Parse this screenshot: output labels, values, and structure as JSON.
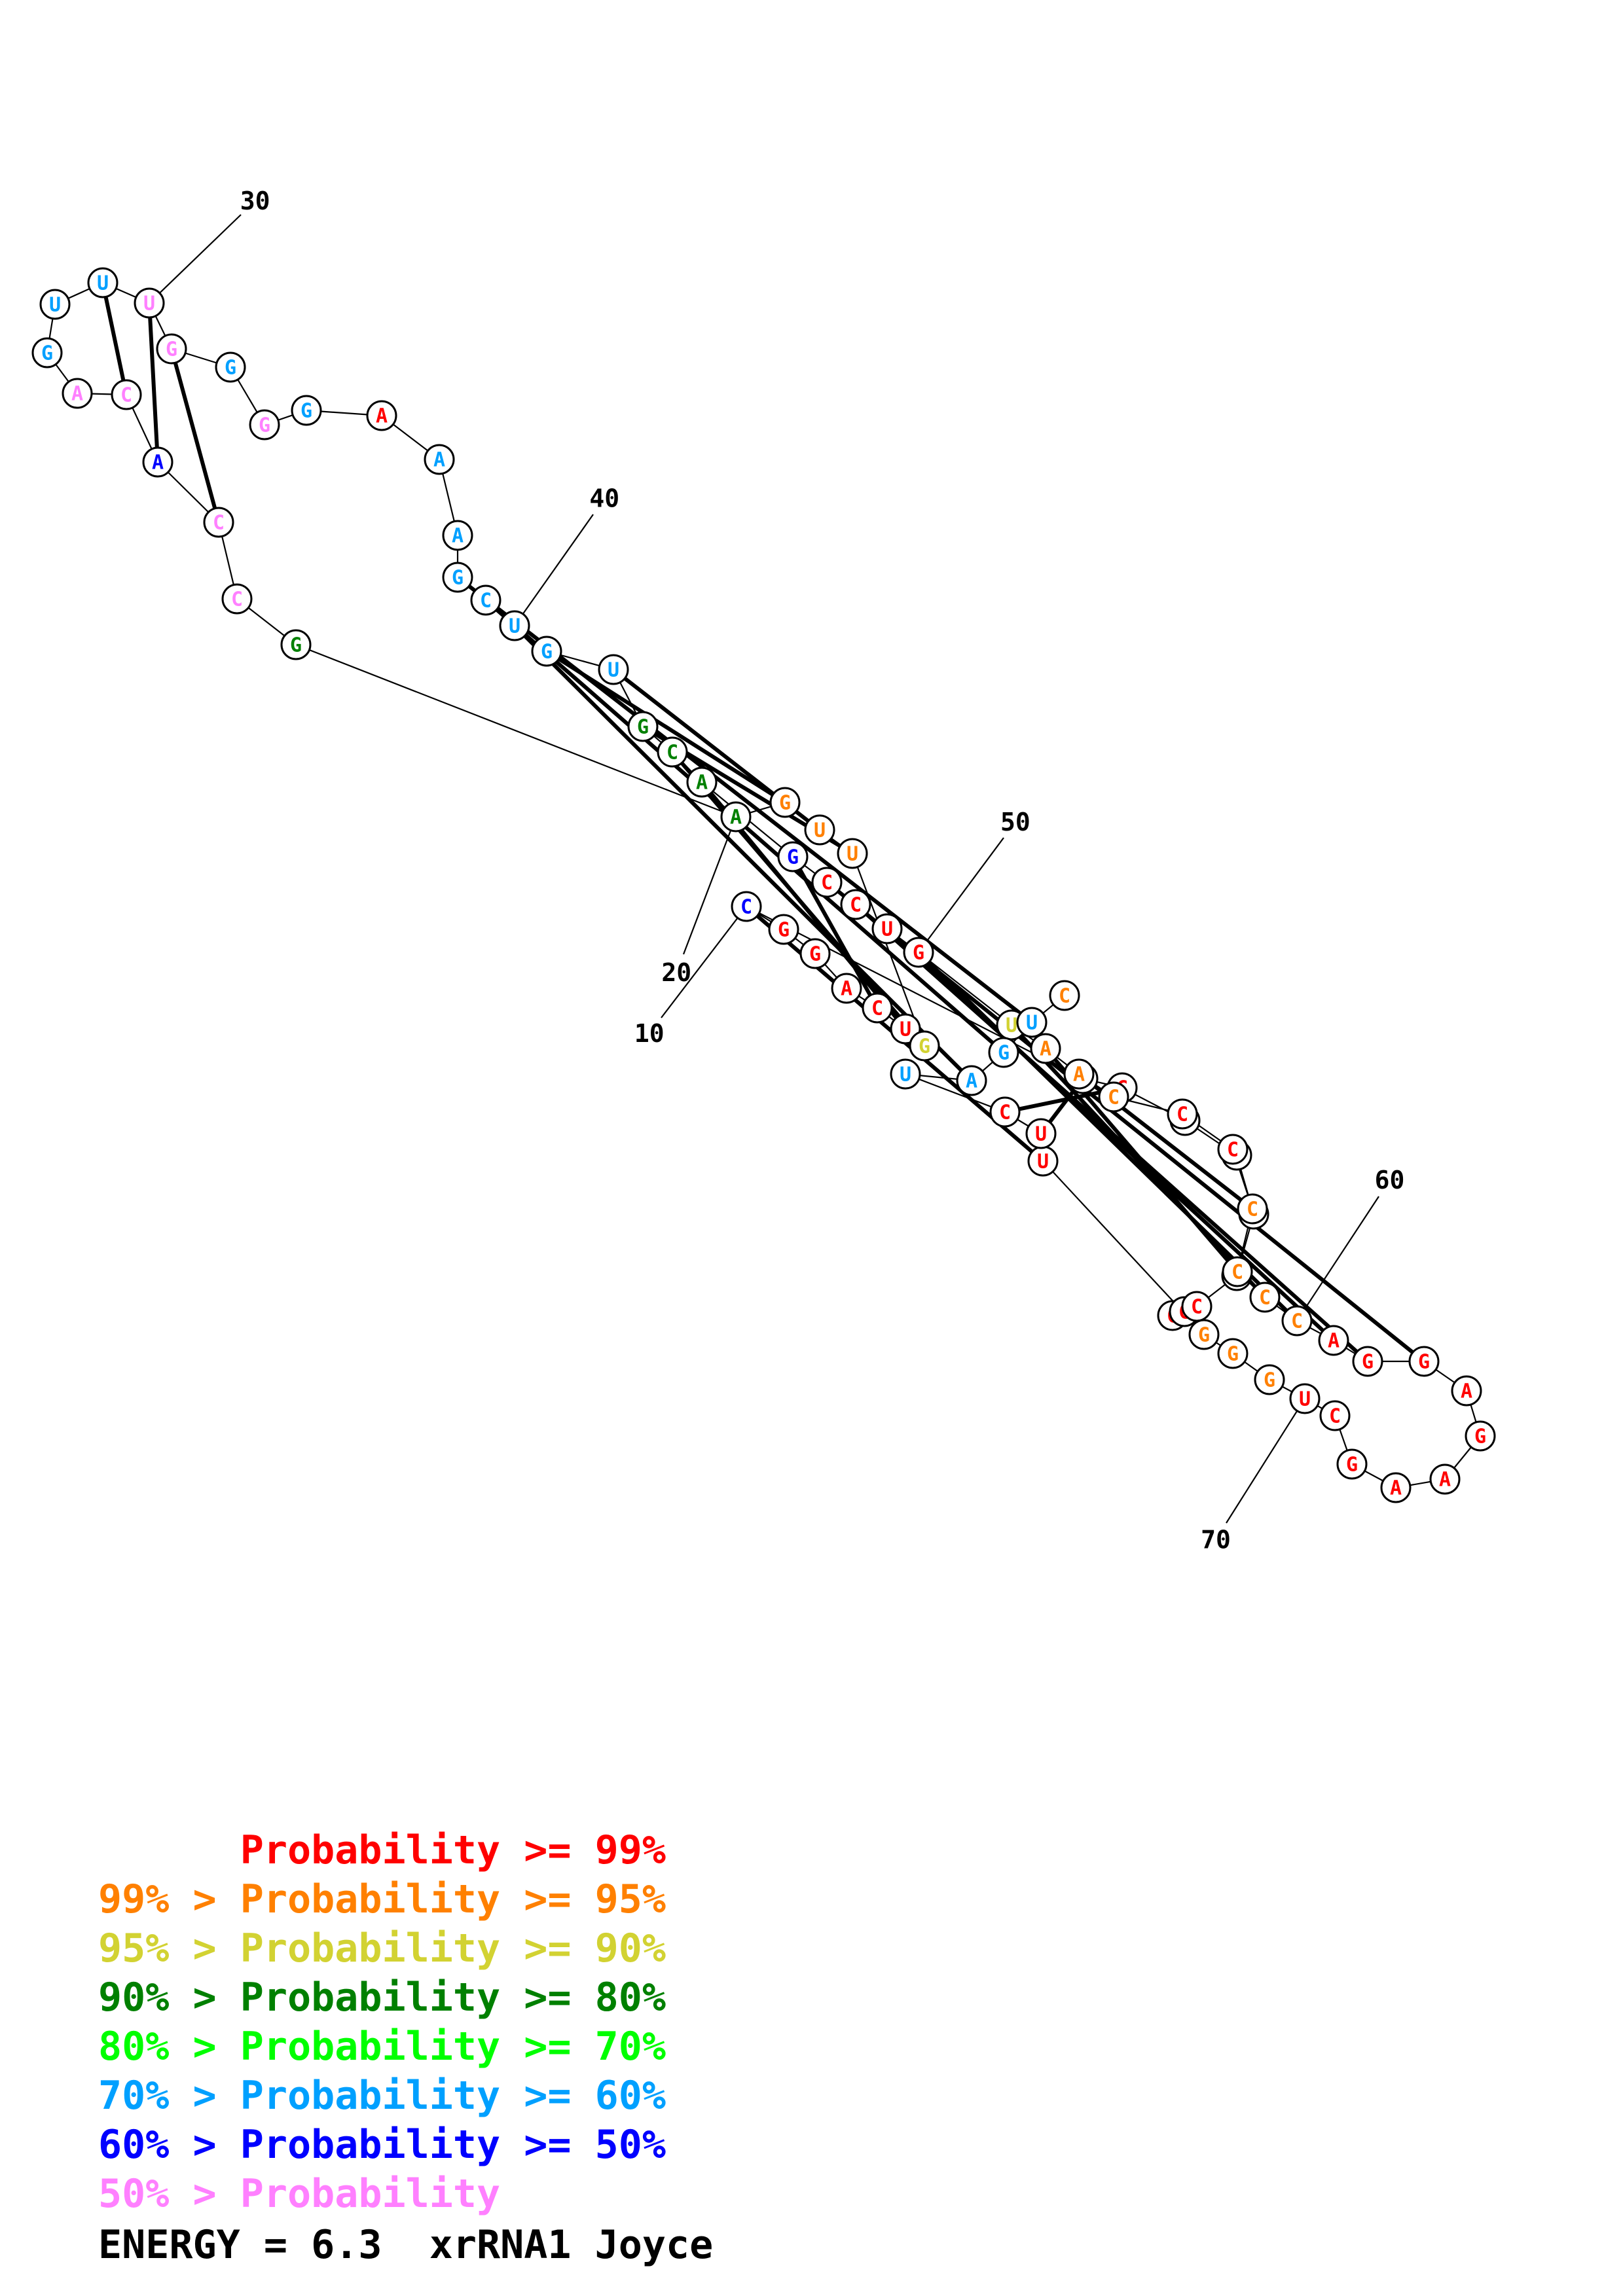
{
  "colors": {
    "p99": "#ff0000",
    "p95": "#ff8000",
    "p90": "#d2d232",
    "p80": "#008000",
    "p70": "#00ff00",
    "p60": "#00a0ff",
    "p50": "#0000ff",
    "p00": "#ff80ff"
  },
  "nucleotides": [
    {
      "n": 1,
      "base": "C",
      "prob": "p99"
    },
    {
      "n": 2,
      "base": "C",
      "prob": "p99"
    },
    {
      "n": 3,
      "base": "C",
      "prob": "p99"
    },
    {
      "n": 4,
      "base": "C",
      "prob": "p95"
    },
    {
      "n": 5,
      "base": "C",
      "prob": "p95"
    },
    {
      "n": 6,
      "base": "C",
      "prob": "p95"
    },
    {
      "n": 7,
      "base": "U",
      "prob": "p99"
    },
    {
      "n": 8,
      "base": "C",
      "prob": "p99"
    },
    {
      "n": 9,
      "base": "C",
      "prob": "p60"
    },
    {
      "n": 10,
      "base": "C",
      "prob": "p50"
    },
    {
      "n": 11,
      "base": "G",
      "prob": "p99"
    },
    {
      "n": 12,
      "base": "G",
      "prob": "p99"
    },
    {
      "n": 13,
      "base": "A",
      "prob": "p99"
    },
    {
      "n": 14,
      "base": "C",
      "prob": "p99"
    },
    {
      "n": 15,
      "base": "U",
      "prob": "p99"
    },
    {
      "n": 16,
      "base": "G",
      "prob": "p90"
    },
    {
      "n": 17,
      "base": "U",
      "prob": "p95"
    },
    {
      "n": 18,
      "base": "U",
      "prob": "p95"
    },
    {
      "n": 19,
      "base": "G",
      "prob": "p95"
    },
    {
      "n": 20,
      "base": "A",
      "prob": "p80"
    },
    {
      "n": 21,
      "base": "G",
      "prob": "p80"
    },
    {
      "n": 22,
      "base": "C",
      "prob": "p00"
    },
    {
      "n": 23,
      "base": "C",
      "prob": "p00"
    },
    {
      "n": 24,
      "base": "A",
      "prob": "p50"
    },
    {
      "n": 25,
      "base": "C",
      "prob": "p00"
    },
    {
      "n": 26,
      "base": "A",
      "prob": "p00"
    },
    {
      "n": 27,
      "base": "G",
      "prob": "p60"
    },
    {
      "n": 28,
      "base": "U",
      "prob": "p60"
    },
    {
      "n": 29,
      "base": "U",
      "prob": "p60"
    },
    {
      "n": 30,
      "base": "U",
      "prob": "p00"
    },
    {
      "n": 31,
      "base": "G",
      "prob": "p00"
    },
    {
      "n": 32,
      "base": "G",
      "prob": "p60"
    },
    {
      "n": 33,
      "base": "G",
      "prob": "p00"
    },
    {
      "n": 34,
      "base": "G",
      "prob": "p60"
    },
    {
      "n": 35,
      "base": "A",
      "prob": "p99"
    },
    {
      "n": 36,
      "base": "A",
      "prob": "p60"
    },
    {
      "n": 37,
      "base": "A",
      "prob": "p60"
    },
    {
      "n": 38,
      "base": "G",
      "prob": "p60"
    },
    {
      "n": 39,
      "base": "C",
      "prob": "p60"
    },
    {
      "n": 40,
      "base": "U",
      "prob": "p60"
    },
    {
      "n": 41,
      "base": "G",
      "prob": "p60"
    },
    {
      "n": 42,
      "base": "U",
      "prob": "p60"
    },
    {
      "n": 43,
      "base": "G",
      "prob": "p80"
    },
    {
      "n": 44,
      "base": "C",
      "prob": "p80"
    },
    {
      "n": 45,
      "base": "A",
      "prob": "p80"
    },
    {
      "n": 46,
      "base": "G",
      "prob": "p50"
    },
    {
      "n": 47,
      "base": "C",
      "prob": "p99"
    },
    {
      "n": 48,
      "base": "C",
      "prob": "p99"
    },
    {
      "n": 49,
      "base": "U",
      "prob": "p99"
    },
    {
      "n": 50,
      "base": "G",
      "prob": "p99"
    },
    {
      "n": 51,
      "base": "U",
      "prob": "p90"
    },
    {
      "n": 52,
      "base": "A",
      "prob": "p95"
    },
    {
      "n": 53,
      "base": "A",
      "prob": "p95"
    },
    {
      "n": 54,
      "base": "C",
      "prob": "p95"
    },
    {
      "n": 55,
      "base": "C",
      "prob": "p99"
    },
    {
      "n": 56,
      "base": "C",
      "prob": "p99"
    },
    {
      "n": 57,
      "base": "C",
      "prob": "p95"
    },
    {
      "n": 58,
      "base": "C",
      "prob": "p95"
    },
    {
      "n": 59,
      "base": "C",
      "prob": "p95"
    },
    {
      "n": 60,
      "base": "C",
      "prob": "p95"
    },
    {
      "n": 61,
      "base": "A",
      "prob": "p99"
    },
    {
      "n": 62,
      "base": "G",
      "prob": "p99"
    },
    {
      "n": 63,
      "base": "G",
      "prob": "p99"
    },
    {
      "n": 64,
      "base": "A",
      "prob": "p99"
    },
    {
      "n": 65,
      "base": "G",
      "prob": "p99"
    },
    {
      "n": 66,
      "base": "A",
      "prob": "p99"
    },
    {
      "n": 67,
      "base": "A",
      "prob": "p99"
    },
    {
      "n": 68,
      "base": "G",
      "prob": "p99"
    },
    {
      "n": 69,
      "base": "C",
      "prob": "p99"
    },
    {
      "n": 70,
      "base": "U",
      "prob": "p99"
    },
    {
      "n": 71,
      "base": "G",
      "prob": "p95"
    },
    {
      "n": 72,
      "base": "G",
      "prob": "p95"
    },
    {
      "n": 73,
      "base": "G",
      "prob": "p95"
    },
    {
      "n": 74,
      "base": "U",
      "prob": "p99"
    },
    {
      "n": 75,
      "base": "U",
      "prob": "p99"
    },
    {
      "n": 76,
      "base": "C",
      "prob": "p99"
    },
    {
      "n": 77,
      "base": "U",
      "prob": "p60"
    },
    {
      "n": 78,
      "base": "A",
      "prob": "p60"
    },
    {
      "n": 79,
      "base": "G",
      "prob": "p60"
    },
    {
      "n": 80,
      "base": "U",
      "prob": "p60"
    },
    {
      "n": 81,
      "base": "C",
      "prob": "p95"
    }
  ],
  "pairs": [
    [
      8,
      76
    ],
    [
      9,
      75
    ],
    [
      10,
      74
    ],
    [
      14,
      46
    ],
    [
      15,
      45
    ],
    [
      16,
      44
    ],
    [
      17,
      43
    ],
    [
      18,
      42
    ],
    [
      19,
      41
    ],
    [
      23,
      31
    ],
    [
      24,
      30
    ],
    [
      25,
      29
    ],
    [
      38,
      80
    ],
    [
      39,
      79
    ],
    [
      40,
      78
    ],
    [
      47,
      63
    ],
    [
      48,
      62
    ],
    [
      49,
      61
    ],
    [
      50,
      60
    ],
    [
      51,
      59
    ],
    [
      52,
      58
    ],
    [
      53,
      57
    ]
  ],
  "ticks": [
    {
      "label": "10",
      "n": 10
    },
    {
      "label": "20",
      "n": 20
    },
    {
      "label": "30",
      "n": 30
    },
    {
      "label": "40",
      "n": 40
    },
    {
      "label": "50",
      "n": 50
    },
    {
      "label": "60",
      "n": 60
    },
    {
      "label": "70",
      "n": 70
    }
  ],
  "legend": [
    {
      "text": "      Probability >= 99%",
      "prob": "p99"
    },
    {
      "text": "99% > Probability >= 95%",
      "prob": "p95"
    },
    {
      "text": "95% > Probability >= 90%",
      "prob": "p90"
    },
    {
      "text": "90% > Probability >= 80%",
      "prob": "p80"
    },
    {
      "text": "80% > Probability >= 70%",
      "prob": "p70"
    },
    {
      "text": "70% > Probability >= 60%",
      "prob": "p60"
    },
    {
      "text": "60% > Probability >= 50%",
      "prob": "p50"
    },
    {
      "text": "50% > Probability",
      "prob": "p00"
    }
  ],
  "footer": {
    "energy_label": "ENERGY = 6.3",
    "name": "xrRNA1 Joyce"
  }
}
